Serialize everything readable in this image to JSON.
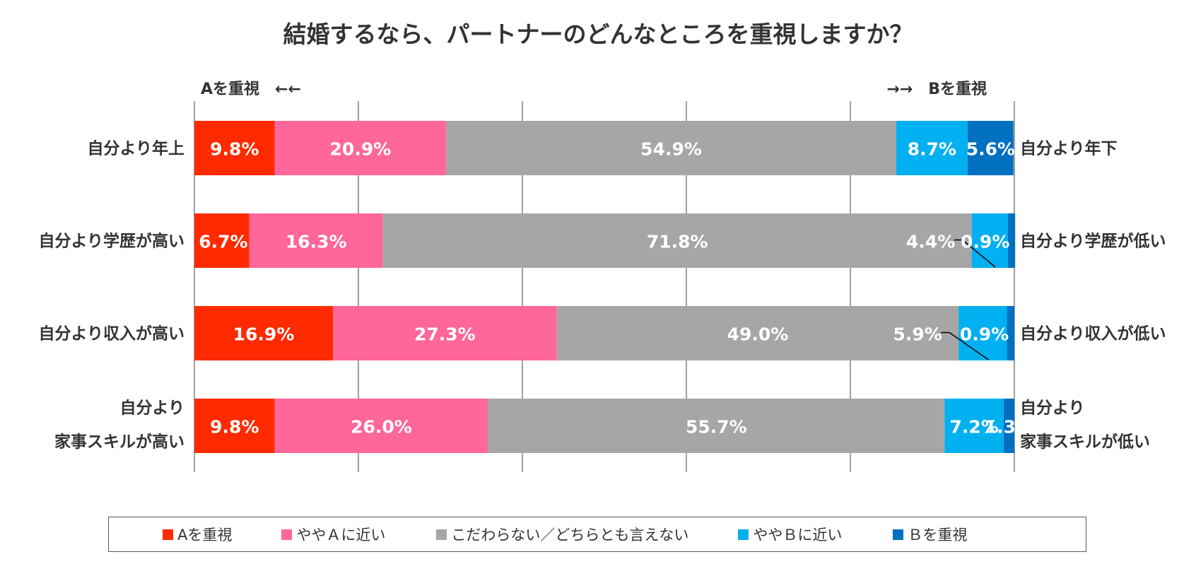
{
  "chart_data": {
    "type": "bar",
    "orientation": "horizontal-stacked-100",
    "title": "結婚するなら、パートナーのどんなところを重視しますか？",
    "left_header": "Aを重視　←←",
    "right_header": "→→　Bを重視",
    "categories_left": [
      "自分より年上",
      "自分より学歴が高い",
      "自分より収入が高い",
      "自分より\n家事スキルが高い"
    ],
    "categories_right": [
      "自分より年下",
      "自分より学歴が低い",
      "自分より収入が低い",
      "自分より\n家事スキルが低い"
    ],
    "series": [
      {
        "name": "Aを重視",
        "color": "#ff2a00",
        "values": [
          9.8,
          6.7,
          16.9,
          9.8
        ],
        "labels": [
          "9.8%",
          "6.7%",
          "16.9%",
          "9.8%"
        ]
      },
      {
        "name": "ややＡに近い",
        "color": "#ff6699",
        "values": [
          20.9,
          16.3,
          27.3,
          26.0
        ],
        "labels": [
          "20.9%",
          "16.3%",
          "27.3%",
          "26.0%"
        ]
      },
      {
        "name": "こだわらない／どちらとも言えない",
        "color": "#a6a6a6",
        "values": [
          54.9,
          71.8,
          49.0,
          55.7
        ],
        "labels": [
          "54.9%",
          "71.8%",
          "49.0%",
          "55.7%"
        ]
      },
      {
        "name": "ややＢに近い",
        "color": "#00b0f0",
        "values": [
          8.7,
          4.4,
          5.9,
          7.2
        ],
        "labels": [
          "8.7%",
          "4.4%",
          "5.9%",
          "7.2%"
        ]
      },
      {
        "name": "Ｂを重視",
        "color": "#0070c0",
        "values": [
          5.6,
          0.9,
          0.9,
          1.3
        ],
        "labels": [
          "5.6%",
          "0.9%",
          "0.9%",
          "1.3%"
        ]
      }
    ],
    "xlim": [
      0,
      100
    ],
    "grid": true,
    "legend_position": "bottom"
  }
}
